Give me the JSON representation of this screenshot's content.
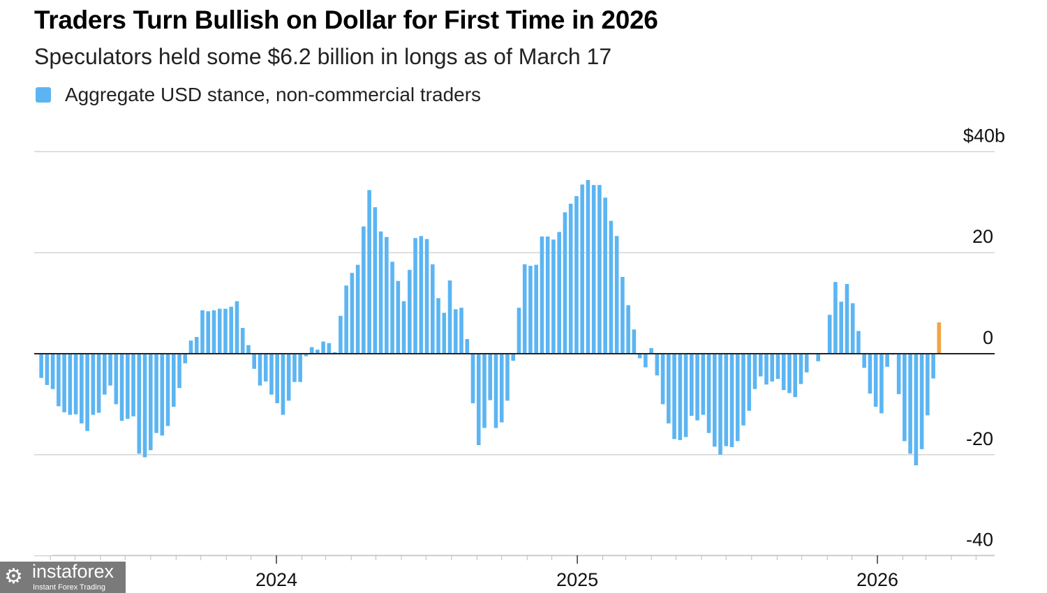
{
  "chart_data": {
    "type": "bar",
    "title": "Traders Turn Bullish on Dollar for First Time in 2026",
    "subtitle": "Speculators held some $6.2 billion in longs as of March 17",
    "legend": [
      {
        "name": "Aggregate USD stance, non-commercial traders",
        "color": "#5cb5f2"
      }
    ],
    "legend_placement": "top-left",
    "highlight_color": "#f0a445",
    "x_range": [
      "2023-03-21",
      "2026-03-17"
    ],
    "x_frequency": "weekly",
    "x_tick_labels": [
      "2024",
      "2025",
      "2026"
    ],
    "y_unit": "USD billions",
    "ylim": [
      -40,
      40
    ],
    "y_ticks": [
      40,
      20,
      0,
      -20,
      -40
    ],
    "y_tick_labels": [
      "$40b",
      "20",
      "0",
      "-20",
      "-40"
    ],
    "grid": true,
    "series": [
      {
        "name": "Aggregate USD stance, non-commercial traders",
        "values": [
          -4.8,
          -6.2,
          -7.0,
          -10.4,
          -11.6,
          -12.1,
          -12.0,
          -13.8,
          -15.3,
          -12.1,
          -11.7,
          -8.1,
          -6.3,
          -10.0,
          -13.3,
          -12.9,
          -12.4,
          -19.8,
          -20.5,
          -19.1,
          -15.7,
          -16.2,
          -14.3,
          -10.5,
          -6.8,
          -1.9,
          2.6,
          3.3,
          8.6,
          8.4,
          8.6,
          8.9,
          8.9,
          9.3,
          10.4,
          5.1,
          1.7,
          -3.0,
          -6.3,
          -5.5,
          -8.1,
          -9.8,
          -12.1,
          -9.3,
          -5.6,
          -5.6,
          -0.5,
          1.3,
          0.8,
          2.4,
          2.1,
          0.3,
          7.5,
          13.5,
          16.0,
          17.6,
          25.2,
          32.4,
          29.0,
          24.2,
          23.1,
          18.2,
          14.4,
          10.4,
          16.6,
          22.9,
          23.3,
          22.7,
          17.7,
          11.0,
          8.1,
          14.5,
          8.8,
          9.1,
          2.9,
          -9.8,
          -18.1,
          -14.7,
          -9.2,
          -14.7,
          -13.6,
          -9.3,
          -1.4,
          9.1,
          17.7,
          17.4,
          17.6,
          23.2,
          23.2,
          22.6,
          24.1,
          28.0,
          29.7,
          31.2,
          33.5,
          34.4,
          33.4,
          33.4,
          30.9,
          26.3,
          23.3,
          15.2,
          9.6,
          4.8,
          -0.9,
          -2.7,
          1.1,
          -4.3,
          -10.0,
          -13.8,
          -16.9,
          -17.1,
          -16.5,
          -12.3,
          -13.2,
          -12.1,
          -15.7,
          -18.4,
          -20.0,
          -18.3,
          -18.5,
          -17.3,
          -14.2,
          -11.3,
          -7.0,
          -4.5,
          -6.1,
          -5.5,
          -5.0,
          -7.2,
          -7.8,
          -8.6,
          -6.0,
          -3.7,
          0,
          -1.5,
          0,
          7.7,
          14.2,
          10.3,
          13.8,
          10.0,
          4.5,
          -2.8,
          -7.9,
          -10.5,
          -11.8,
          -2.6,
          -0.2,
          -8.0,
          -17.3,
          -19.8,
          -22.1,
          -18.9,
          -12.2,
          -4.9,
          6.2
        ]
      }
    ]
  },
  "watermark": {
    "name": "instaforex",
    "tagline": "Instant Forex Trading"
  }
}
